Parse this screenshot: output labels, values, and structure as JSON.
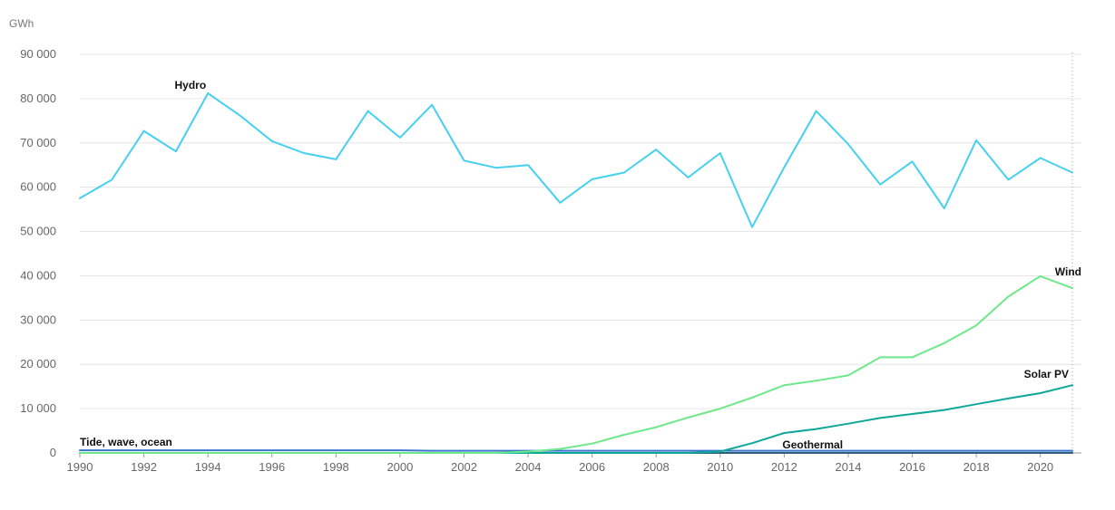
{
  "chart_data": {
    "type": "line",
    "unit_label": "GWh",
    "ylim": [
      0,
      90000
    ],
    "y_ticks": [
      0,
      10000,
      20000,
      30000,
      40000,
      50000,
      60000,
      70000,
      80000,
      90000
    ],
    "y_tick_labels": [
      "0",
      "10 000",
      "20 000",
      "30 000",
      "40 000",
      "50 000",
      "60 000",
      "70 000",
      "80 000",
      "90 000"
    ],
    "x": [
      1990,
      1991,
      1992,
      1993,
      1994,
      1995,
      1996,
      1997,
      1998,
      1999,
      2000,
      2001,
      2002,
      2003,
      2004,
      2005,
      2006,
      2007,
      2008,
      2009,
      2010,
      2011,
      2012,
      2013,
      2014,
      2015,
      2016,
      2017,
      2018,
      2019,
      2020,
      2021
    ],
    "xlim": [
      1990,
      2021
    ],
    "x_ticks": [
      1990,
      1992,
      1994,
      1996,
      1998,
      2000,
      2002,
      2004,
      2006,
      2008,
      2010,
      2012,
      2014,
      2016,
      2018,
      2020
    ],
    "x_tick_labels": [
      "1990",
      "1992",
      "1994",
      "1996",
      "1998",
      "2000",
      "2002",
      "2004",
      "2006",
      "2008",
      "2010",
      "2012",
      "2014",
      "2016",
      "2018",
      "2020"
    ],
    "grid": true,
    "series": [
      {
        "name": "Hydro",
        "color": "#46d0f0",
        "values": [
          57500,
          61700,
          72700,
          68100,
          81200,
          76200,
          70400,
          67700,
          66300,
          77200,
          71200,
          78600,
          66000,
          64400,
          65000,
          56500,
          61800,
          63300,
          68500,
          62200,
          67700,
          51000,
          64500,
          77200,
          69700,
          60600,
          65800,
          55200,
          70600,
          61700,
          66600,
          63300
        ]
      },
      {
        "name": "Wind",
        "color": "#6ee88a",
        "values": [
          0,
          0,
          0,
          0,
          0,
          0,
          0,
          0,
          0,
          0,
          0,
          0,
          0,
          0,
          300,
          900,
          2100,
          4100,
          5800,
          8000,
          10000,
          12500,
          15300,
          16300,
          17500,
          21600,
          21600,
          24800,
          28800,
          35300,
          39900,
          37200
        ]
      },
      {
        "name": "Solar PV",
        "color": "#0fa898",
        "values": [
          0,
          0,
          0,
          0,
          0,
          0,
          0,
          0,
          0,
          0,
          0,
          0,
          0,
          0,
          0,
          0,
          0,
          0,
          0,
          0,
          300,
          2200,
          4500,
          5400,
          6600,
          7900,
          8800,
          9700,
          11000,
          12300,
          13500,
          15300
        ]
      },
      {
        "name": "Geothermal",
        "color": "#2f5f7a",
        "values": [
          0,
          0,
          0,
          0,
          0,
          0,
          0,
          0,
          0,
          0,
          0,
          0,
          0,
          0,
          0,
          0,
          0,
          0,
          0,
          0,
          0,
          0,
          0,
          0,
          0,
          0,
          0,
          0,
          0,
          0,
          0,
          0
        ]
      },
      {
        "name": "Tide, wave, ocean",
        "color": "#3a74cc",
        "values": [
          600,
          600,
          600,
          600,
          600,
          600,
          600,
          600,
          600,
          600,
          600,
          500,
          500,
          500,
          500,
          500,
          500,
          500,
          500,
          500,
          500,
          500,
          500,
          500,
          500,
          500,
          500,
          500,
          500,
          500,
          500,
          500
        ]
      }
    ]
  }
}
